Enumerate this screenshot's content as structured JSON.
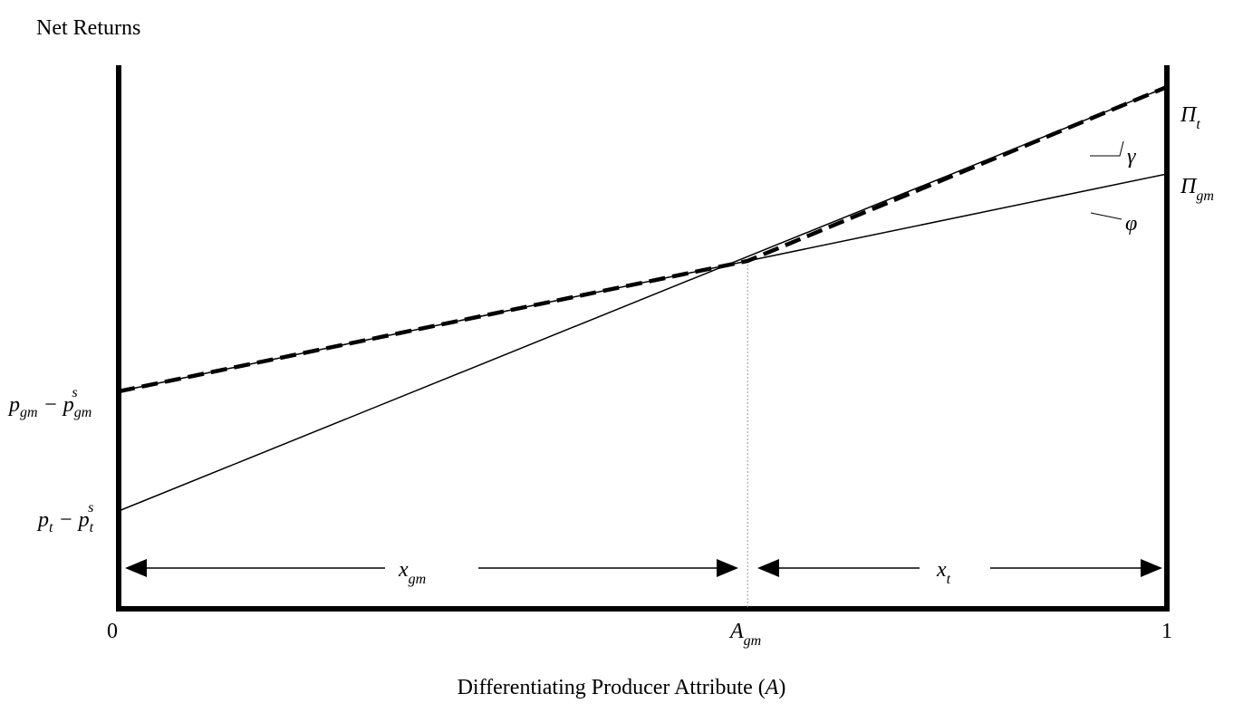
{
  "figure": {
    "y_axis_title": "Net Returns",
    "x_axis_title": "Differentiating Producer Attribute (",
    "x_axis_title_var": "A",
    "x_axis_title_close": ")",
    "x_tick_left": "0",
    "x_tick_right": "1",
    "a_gm_base": "A",
    "a_gm_sub": "gm",
    "pi_t_base": "Π",
    "pi_t_sub": "t",
    "pi_gm_base": "Π",
    "pi_gm_sub": "gm",
    "gamma": "γ",
    "phi": "φ",
    "x_gm_base": "x",
    "x_gm_sub": "gm",
    "x_t_base": "x",
    "x_t_sub": "t",
    "pgm_label": {
      "p": "p",
      "p_sub": "gm",
      "minus": " − p",
      "ps_sub": "gm",
      "ps_sup": "s"
    },
    "pt_label": {
      "p": "p",
      "p_sub": "t",
      "minus": " − p",
      "ps_sub": "t",
      "ps_sup": "s"
    }
  },
  "chart_data": {
    "type": "line",
    "x_domain": [
      0,
      1
    ],
    "intersection_x": 0.6,
    "series": [
      {
        "name": "Π_t",
        "style": "solid",
        "points": [
          [
            0,
            0.18
          ],
          [
            1,
            0.96
          ]
        ]
      },
      {
        "name": "Π_gm",
        "style": "solid",
        "points": [
          [
            0,
            0.4
          ],
          [
            1,
            0.8
          ]
        ]
      },
      {
        "style": "dashed",
        "points": [
          [
            0,
            0.4
          ],
          [
            0.6,
            0.64
          ],
          [
            1,
            0.96
          ]
        ]
      }
    ]
  }
}
